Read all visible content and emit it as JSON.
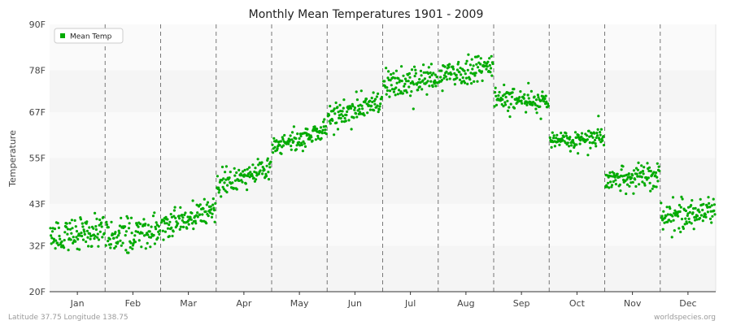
{
  "chart_data": {
    "type": "scatter",
    "title": "Monthly Mean Temperatures 1901 - 2009",
    "ylabel": "Temperature",
    "xlabel": "",
    "categories": [
      "Jan",
      "Feb",
      "Mar",
      "Apr",
      "May",
      "Jun",
      "Jul",
      "Aug",
      "Sep",
      "Oct",
      "Nov",
      "Dec"
    ],
    "y_ticks": [
      {
        "value": 20,
        "label": "20F"
      },
      {
        "value": 32,
        "label": "32F"
      },
      {
        "value": 43,
        "label": "43F"
      },
      {
        "value": 55,
        "label": "55F"
      },
      {
        "value": 67,
        "label": "67F"
      },
      {
        "value": 78,
        "label": "78F"
      },
      {
        "value": 90,
        "label": "90F"
      }
    ],
    "ylim": [
      20,
      90
    ],
    "points_per_month": 109,
    "series": [
      {
        "name": "Mean Temp",
        "color": "#00aa00",
        "monthly_trend": [
          {
            "month": "Jan",
            "start": 34.0,
            "end": 36.5,
            "spread": 2.2
          },
          {
            "month": "Feb",
            "start": 34.0,
            "end": 36.5,
            "spread": 2.2
          },
          {
            "month": "Mar",
            "start": 37.5,
            "end": 41.0,
            "spread": 1.8
          },
          {
            "month": "Apr",
            "start": 48.5,
            "end": 52.5,
            "spread": 1.8
          },
          {
            "month": "May",
            "start": 58.0,
            "end": 62.5,
            "spread": 1.6
          },
          {
            "month": "Jun",
            "start": 66.0,
            "end": 69.5,
            "spread": 1.6
          },
          {
            "month": "Jul",
            "start": 74.0,
            "end": 76.0,
            "spread": 2.0
          },
          {
            "month": "Aug",
            "start": 77.0,
            "end": 78.5,
            "spread": 1.8
          },
          {
            "month": "Sep",
            "start": 70.5,
            "end": 70.0,
            "spread": 1.6
          },
          {
            "month": "Oct",
            "start": 59.5,
            "end": 60.0,
            "spread": 1.3
          },
          {
            "month": "Nov",
            "start": 49.0,
            "end": 50.5,
            "spread": 1.6
          },
          {
            "month": "Dec",
            "start": 39.5,
            "end": 41.5,
            "spread": 1.8
          }
        ]
      }
    ],
    "grid": true,
    "legend": {
      "placement": "top-left",
      "entries": [
        "Mean Temp"
      ]
    }
  },
  "footer": {
    "left": "Latitude 37.75 Longitude 138.75",
    "right": "worldspecies.org"
  }
}
